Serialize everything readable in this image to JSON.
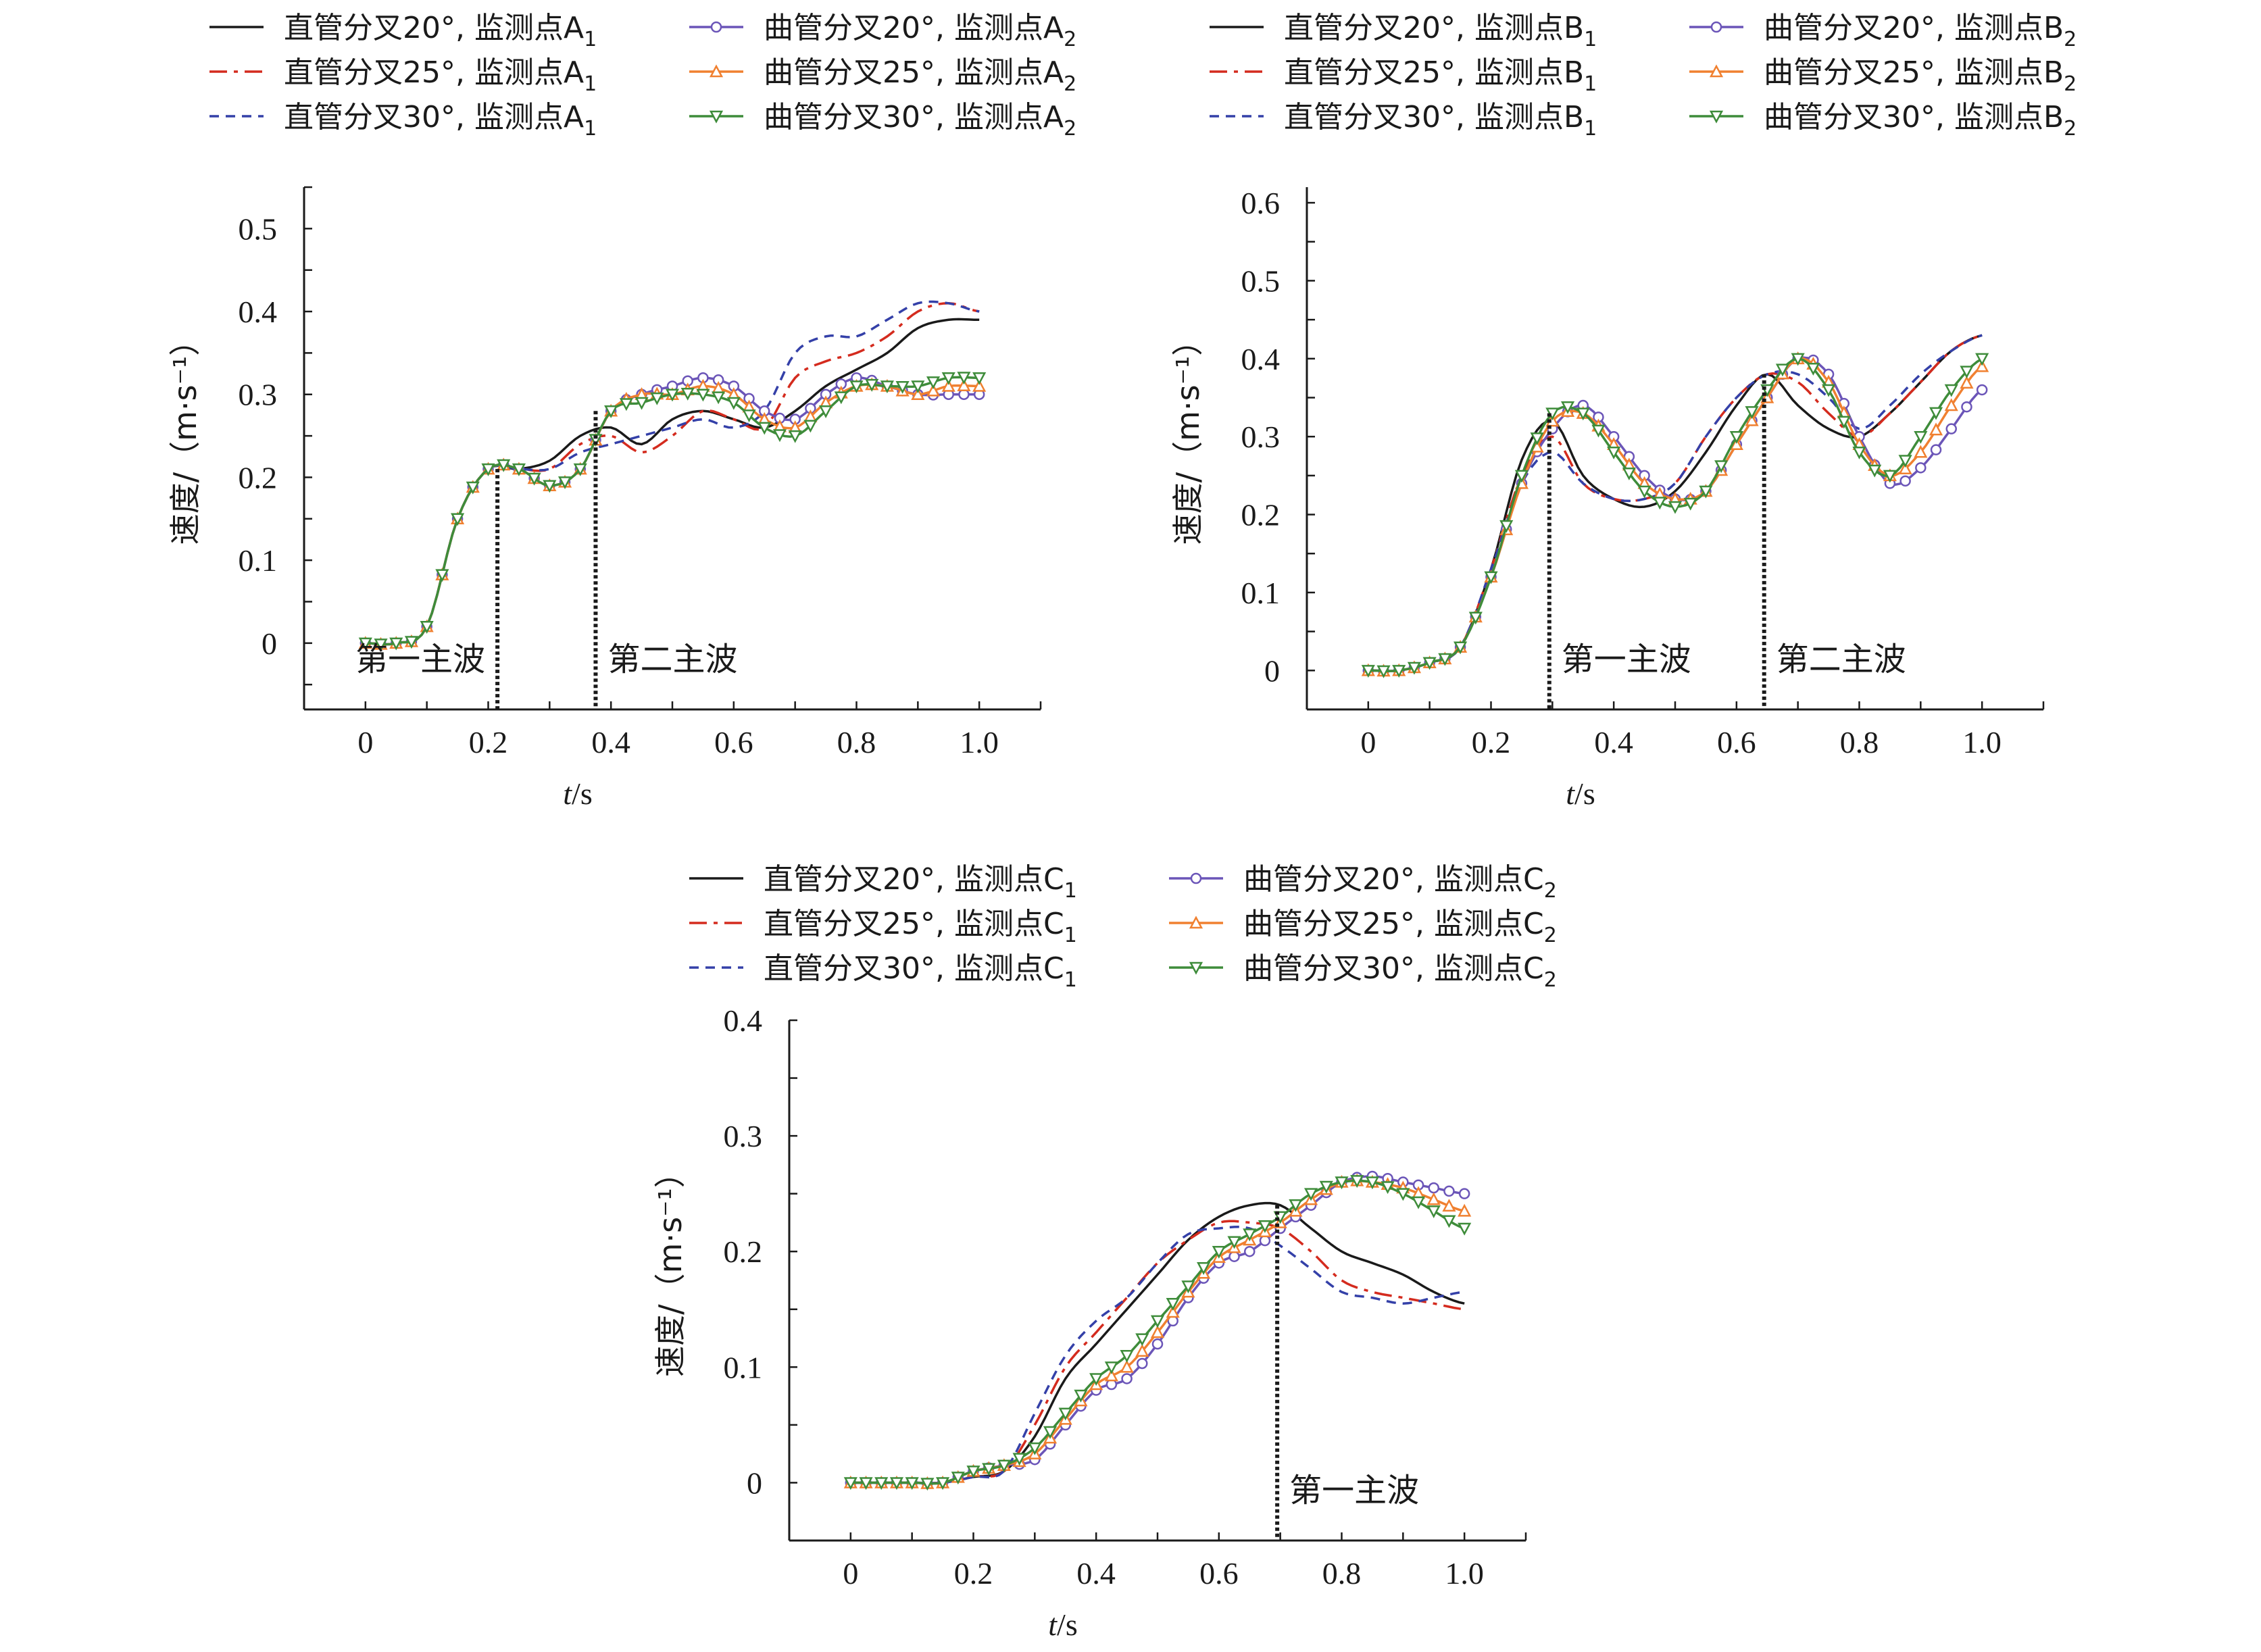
{
  "colors": {
    "straight_20": "#1a1a1a",
    "straight_25": "#d42b1e",
    "straight_30": "#3440a8",
    "curved_20": "#6b55b8",
    "curved_25": "#f08030",
    "curved_30": "#3e8c3a"
  },
  "common": {
    "ylabel": "速度/（m·s⁻¹）",
    "xlabel_italic": "t",
    "xlabel_rest": "/s",
    "xticks": [
      "0",
      "0.2",
      "0.4",
      "0.6",
      "0.8",
      "1.0"
    ]
  },
  "chart_data": [
    {
      "type": "line",
      "id": "A",
      "xlim": [
        -0.1,
        1.1
      ],
      "ylim": [
        -0.08,
        0.55
      ],
      "yticks": [
        "0",
        "0.1",
        "0.2",
        "0.3",
        "0.4",
        "0.5"
      ],
      "legend": [
        "直管分叉20°, 监测点A₁",
        "直管分叉25°, 监测点A₁",
        "直管分叉30°, 监测点A₁",
        "曲管分叉20°, 监测点A₂",
        "曲管分叉25°, 监测点A₂",
        "曲管分叉30°, 监测点A₂"
      ],
      "annotations": [
        {
          "x": 0.215,
          "text": "第一主波"
        },
        {
          "x": 0.375,
          "text": "第二主波"
        }
      ],
      "x": [
        0,
        0.05,
        0.1,
        0.15,
        0.2,
        0.25,
        0.3,
        0.35,
        0.4,
        0.45,
        0.5,
        0.55,
        0.6,
        0.65,
        0.7,
        0.75,
        0.8,
        0.85,
        0.9,
        0.95,
        1.0
      ],
      "series": [
        {
          "name": "直管分叉20°, 监测点A₁",
          "style": "straight_20",
          "values": [
            0,
            0,
            0.02,
            0.15,
            0.21,
            0.21,
            0.22,
            0.25,
            0.26,
            0.24,
            0.27,
            0.28,
            0.27,
            0.26,
            0.28,
            0.31,
            0.33,
            0.35,
            0.38,
            0.39,
            0.39
          ]
        },
        {
          "name": "直管分叉25°, 监测点A₁",
          "style": "straight_25",
          "values": [
            0,
            0,
            0.02,
            0.15,
            0.21,
            0.21,
            0.21,
            0.24,
            0.25,
            0.23,
            0.25,
            0.28,
            0.27,
            0.26,
            0.32,
            0.34,
            0.35,
            0.37,
            0.4,
            0.41,
            0.4
          ]
        },
        {
          "name": "直管分叉30°, 监测点A₁",
          "style": "straight_30",
          "values": [
            0,
            0,
            0.02,
            0.15,
            0.21,
            0.21,
            0.21,
            0.23,
            0.24,
            0.25,
            0.26,
            0.27,
            0.26,
            0.28,
            0.35,
            0.37,
            0.37,
            0.39,
            0.41,
            0.41,
            0.4
          ]
        },
        {
          "name": "曲管分叉20°, 监测点A₂",
          "style": "curved_20",
          "values": [
            0,
            0,
            0.02,
            0.15,
            0.21,
            0.21,
            0.19,
            0.21,
            0.28,
            0.3,
            0.31,
            0.32,
            0.31,
            0.28,
            0.27,
            0.3,
            0.32,
            0.31,
            0.3,
            0.3,
            0.3
          ]
        },
        {
          "name": "曲管分叉25°, 监测点A₂",
          "style": "curved_25",
          "values": [
            0,
            0,
            0.02,
            0.15,
            0.21,
            0.21,
            0.19,
            0.21,
            0.28,
            0.3,
            0.3,
            0.31,
            0.3,
            0.27,
            0.26,
            0.29,
            0.31,
            0.31,
            0.3,
            0.31,
            0.31
          ]
        },
        {
          "name": "曲管分叉30°, 监测点A₂",
          "style": "curved_30",
          "values": [
            0,
            0,
            0.02,
            0.15,
            0.21,
            0.21,
            0.19,
            0.21,
            0.28,
            0.29,
            0.3,
            0.3,
            0.29,
            0.26,
            0.25,
            0.28,
            0.31,
            0.31,
            0.31,
            0.32,
            0.32
          ]
        }
      ]
    },
    {
      "type": "line",
      "id": "B",
      "xlim": [
        -0.1,
        1.1
      ],
      "ylim": [
        -0.05,
        0.62
      ],
      "yticks": [
        "0",
        "0.1",
        "0.2",
        "0.3",
        "0.4",
        "0.5",
        "0.6"
      ],
      "legend": [
        "直管分叉20°, 监测点B₁",
        "直管分叉25°, 监测点B₁",
        "直管分叉30°, 监测点B₁",
        "曲管分叉20°, 监测点B₂",
        "曲管分叉25°, 监测点B₂",
        "曲管分叉30°, 监测点B₂"
      ],
      "annotations": [
        {
          "x": 0.295,
          "text": "第一主波"
        },
        {
          "x": 0.645,
          "text": "第二主波"
        }
      ],
      "x": [
        0,
        0.05,
        0.1,
        0.15,
        0.2,
        0.25,
        0.3,
        0.35,
        0.4,
        0.45,
        0.5,
        0.55,
        0.6,
        0.65,
        0.7,
        0.75,
        0.8,
        0.85,
        0.9,
        0.95,
        1.0
      ],
      "series": [
        {
          "name": "直管分叉20°, 监测点B₁",
          "style": "straight_20",
          "values": [
            0,
            0,
            0.01,
            0.03,
            0.13,
            0.27,
            0.32,
            0.25,
            0.22,
            0.21,
            0.23,
            0.28,
            0.34,
            0.38,
            0.34,
            0.31,
            0.3,
            0.33,
            0.37,
            0.41,
            0.43
          ]
        },
        {
          "name": "直管分叉25°, 监测点B₁",
          "style": "straight_25",
          "values": [
            0,
            0,
            0.01,
            0.03,
            0.13,
            0.25,
            0.3,
            0.24,
            0.22,
            0.22,
            0.24,
            0.3,
            0.35,
            0.38,
            0.37,
            0.33,
            0.3,
            0.33,
            0.37,
            0.41,
            0.43
          ]
        },
        {
          "name": "直管分叉30°, 监测点B₁",
          "style": "straight_30",
          "values": [
            0,
            0,
            0.01,
            0.03,
            0.13,
            0.24,
            0.28,
            0.24,
            0.22,
            0.22,
            0.24,
            0.3,
            0.35,
            0.38,
            0.38,
            0.35,
            0.31,
            0.34,
            0.38,
            0.41,
            0.43
          ]
        },
        {
          "name": "曲管分叉20°, 监测点B₂",
          "style": "curved_20",
          "values": [
            0,
            0,
            0.01,
            0.03,
            0.12,
            0.24,
            0.31,
            0.34,
            0.3,
            0.25,
            0.22,
            0.23,
            0.29,
            0.35,
            0.4,
            0.38,
            0.3,
            0.24,
            0.26,
            0.31,
            0.36
          ]
        },
        {
          "name": "曲管分叉25°, 监测点B₂",
          "style": "curved_25",
          "values": [
            0,
            0,
            0.01,
            0.03,
            0.12,
            0.24,
            0.32,
            0.33,
            0.29,
            0.24,
            0.22,
            0.23,
            0.29,
            0.35,
            0.4,
            0.37,
            0.29,
            0.25,
            0.28,
            0.34,
            0.39
          ]
        },
        {
          "name": "曲管分叉30°, 监测点B₂",
          "style": "curved_30",
          "values": [
            0,
            0,
            0.01,
            0.03,
            0.12,
            0.25,
            0.33,
            0.33,
            0.28,
            0.23,
            0.21,
            0.23,
            0.3,
            0.36,
            0.4,
            0.36,
            0.28,
            0.25,
            0.3,
            0.36,
            0.4
          ]
        }
      ]
    },
    {
      "type": "line",
      "id": "C",
      "xlim": [
        -0.1,
        1.1
      ],
      "ylim": [
        -0.05,
        0.4
      ],
      "yticks": [
        "0",
        "0.1",
        "0.2",
        "0.3",
        "0.4"
      ],
      "legend": [
        "直管分叉20°, 监测点C₁",
        "直管分叉25°, 监测点C₁",
        "直管分叉30°, 监测点C₁",
        "曲管分叉20°, 监测点C₂",
        "曲管分叉25°, 监测点C₂",
        "曲管分叉30°, 监测点C₂"
      ],
      "annotations": [
        {
          "x": 0.695,
          "text": "第一主波"
        }
      ],
      "x": [
        0,
        0.05,
        0.1,
        0.15,
        0.2,
        0.25,
        0.3,
        0.35,
        0.4,
        0.45,
        0.5,
        0.55,
        0.6,
        0.65,
        0.7,
        0.75,
        0.8,
        0.85,
        0.9,
        0.95,
        1.0
      ],
      "series": [
        {
          "name": "直管分叉20°, 监测点C₁",
          "style": "straight_20",
          "values": [
            0,
            0,
            0,
            0,
            0.005,
            0.01,
            0.04,
            0.09,
            0.12,
            0.15,
            0.18,
            0.21,
            0.23,
            0.24,
            0.24,
            0.22,
            0.2,
            0.19,
            0.18,
            0.165,
            0.155
          ]
        },
        {
          "name": "直管分叉25°, 监测点C₁",
          "style": "straight_25",
          "values": [
            0,
            0,
            0,
            0,
            0.005,
            0.01,
            0.05,
            0.1,
            0.13,
            0.16,
            0.19,
            0.21,
            0.225,
            0.225,
            0.22,
            0.2,
            0.175,
            0.165,
            0.16,
            0.155,
            0.15
          ]
        },
        {
          "name": "直管分叉30°, 监测点C₁",
          "style": "straight_30",
          "values": [
            0,
            0,
            0,
            0,
            0.005,
            0.01,
            0.06,
            0.11,
            0.14,
            0.16,
            0.19,
            0.215,
            0.22,
            0.22,
            0.205,
            0.185,
            0.165,
            0.16,
            0.155,
            0.16,
            0.165
          ]
        },
        {
          "name": "曲管分叉20°, 监测点C₂",
          "style": "curved_20",
          "values": [
            0,
            0,
            0,
            0,
            0.01,
            0.015,
            0.02,
            0.05,
            0.08,
            0.09,
            0.12,
            0.16,
            0.19,
            0.2,
            0.22,
            0.24,
            0.26,
            0.265,
            0.26,
            0.255,
            0.25
          ]
        },
        {
          "name": "曲管分叉25°, 监测点C₂",
          "style": "curved_25",
          "values": [
            0,
            0,
            0,
            0,
            0.01,
            0.015,
            0.025,
            0.055,
            0.085,
            0.1,
            0.13,
            0.165,
            0.195,
            0.21,
            0.225,
            0.245,
            0.26,
            0.26,
            0.255,
            0.245,
            0.235
          ]
        },
        {
          "name": "曲管分叉30°, 监测点C₂",
          "style": "curved_30",
          "values": [
            0,
            0,
            0,
            0,
            0.01,
            0.015,
            0.03,
            0.06,
            0.09,
            0.11,
            0.14,
            0.17,
            0.2,
            0.215,
            0.23,
            0.25,
            0.26,
            0.26,
            0.25,
            0.235,
            0.22
          ]
        }
      ]
    }
  ]
}
